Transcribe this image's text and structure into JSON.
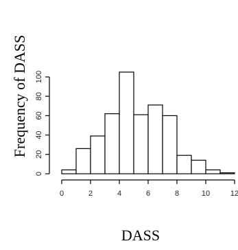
{
  "chart_data": {
    "type": "bar",
    "title": "",
    "xlabel": "DASS",
    "ylabel": "Frequency of DASS",
    "bins": [
      {
        "start": 0,
        "end": 1,
        "count": 4
      },
      {
        "start": 1,
        "end": 2,
        "count": 26
      },
      {
        "start": 2,
        "end": 3,
        "count": 39
      },
      {
        "start": 3,
        "end": 4,
        "count": 62
      },
      {
        "start": 4,
        "end": 5,
        "count": 105
      },
      {
        "start": 5,
        "end": 6,
        "count": 61
      },
      {
        "start": 6,
        "end": 7,
        "count": 71
      },
      {
        "start": 7,
        "end": 8,
        "count": 60
      },
      {
        "start": 8,
        "end": 9,
        "count": 19
      },
      {
        "start": 9,
        "end": 10,
        "count": 14
      },
      {
        "start": 10,
        "end": 11,
        "count": 4
      },
      {
        "start": 11,
        "end": 12,
        "count": 1
      }
    ],
    "xlim": [
      0,
      12
    ],
    "ylim": [
      0,
      105
    ],
    "x_ticks": [
      "0",
      "2",
      "4",
      "6",
      "8",
      "10",
      "12"
    ],
    "y_ticks": [
      "0",
      "20",
      "40",
      "60",
      "80",
      "100"
    ],
    "grid": false,
    "legend": "none"
  }
}
